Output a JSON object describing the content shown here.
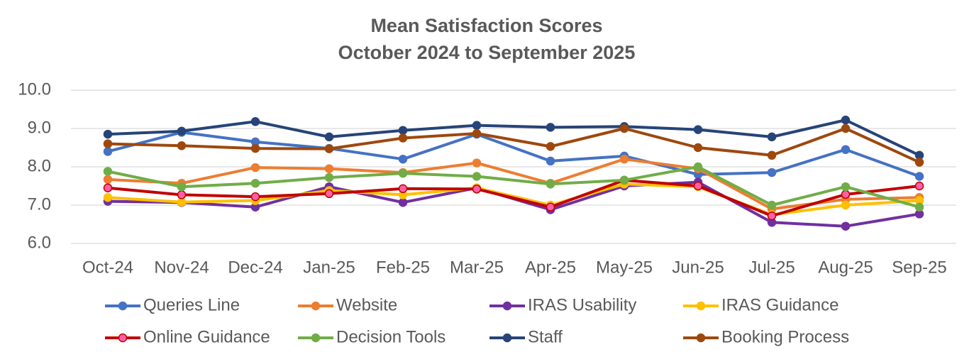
{
  "chart_data": {
    "type": "line",
    "title": "Mean Satisfaction Scores",
    "subtitle": "October 2024 to September 2025",
    "categories": [
      "Oct-24",
      "Nov-24",
      "Dec-24",
      "Jan-25",
      "Feb-25",
      "Mar-25",
      "Apr-25",
      "May-25",
      "Jun-25",
      "Jul-25",
      "Aug-25",
      "Sep-25"
    ],
    "series": [
      {
        "name": "Queries Line",
        "color": "#4472c4",
        "values": [
          8.4,
          8.9,
          8.65,
          8.48,
          8.2,
          8.85,
          8.15,
          8.28,
          7.8,
          7.85,
          8.45,
          7.75
        ]
      },
      {
        "name": "Website",
        "color": "#ed7d31",
        "values": [
          7.67,
          7.57,
          7.98,
          7.95,
          7.85,
          8.1,
          7.57,
          8.2,
          7.95,
          6.9,
          7.15,
          7.2
        ]
      },
      {
        "name": "IRAS Usability",
        "color": "#7030a0",
        "values": [
          7.1,
          7.07,
          6.95,
          7.48,
          7.07,
          7.45,
          6.88,
          7.5,
          7.6,
          6.55,
          6.45,
          6.77
        ]
      },
      {
        "name": "IRAS Guidance",
        "color": "#ffc000",
        "values": [
          7.2,
          7.08,
          7.12,
          7.38,
          7.27,
          7.45,
          7.0,
          7.55,
          7.48,
          6.75,
          7.0,
          7.12
        ]
      },
      {
        "name": "Online Guidance",
        "color": "#c00000",
        "marker_color": "#ff5fa8",
        "values": [
          7.45,
          7.27,
          7.22,
          7.3,
          7.43,
          7.42,
          6.95,
          7.65,
          7.5,
          6.72,
          7.28,
          7.5
        ]
      },
      {
        "name": "Decision Tools",
        "color": "#70ad47",
        "values": [
          7.88,
          7.48,
          7.57,
          7.72,
          7.83,
          7.75,
          7.55,
          7.65,
          8.0,
          7.0,
          7.48,
          6.95
        ]
      },
      {
        "name": "Staff",
        "color": "#264478",
        "values": [
          8.85,
          8.93,
          9.18,
          8.78,
          8.95,
          9.08,
          9.03,
          9.05,
          8.97,
          8.78,
          9.22,
          8.3
        ]
      },
      {
        "name": "Booking Process",
        "color": "#9e480e",
        "values": [
          8.6,
          8.55,
          8.48,
          8.47,
          8.75,
          8.87,
          8.53,
          9.0,
          8.5,
          8.3,
          9.0,
          8.12
        ]
      }
    ],
    "ylim": [
      6,
      10
    ],
    "yticks": [
      {
        "value": 6,
        "label": "6.0"
      },
      {
        "value": 7,
        "label": "7.0"
      },
      {
        "value": 8,
        "label": "8.0"
      },
      {
        "value": 9,
        "label": "9.0"
      },
      {
        "value": 10,
        "label": "10.0"
      }
    ],
    "grid": true,
    "legend": "bottom"
  }
}
